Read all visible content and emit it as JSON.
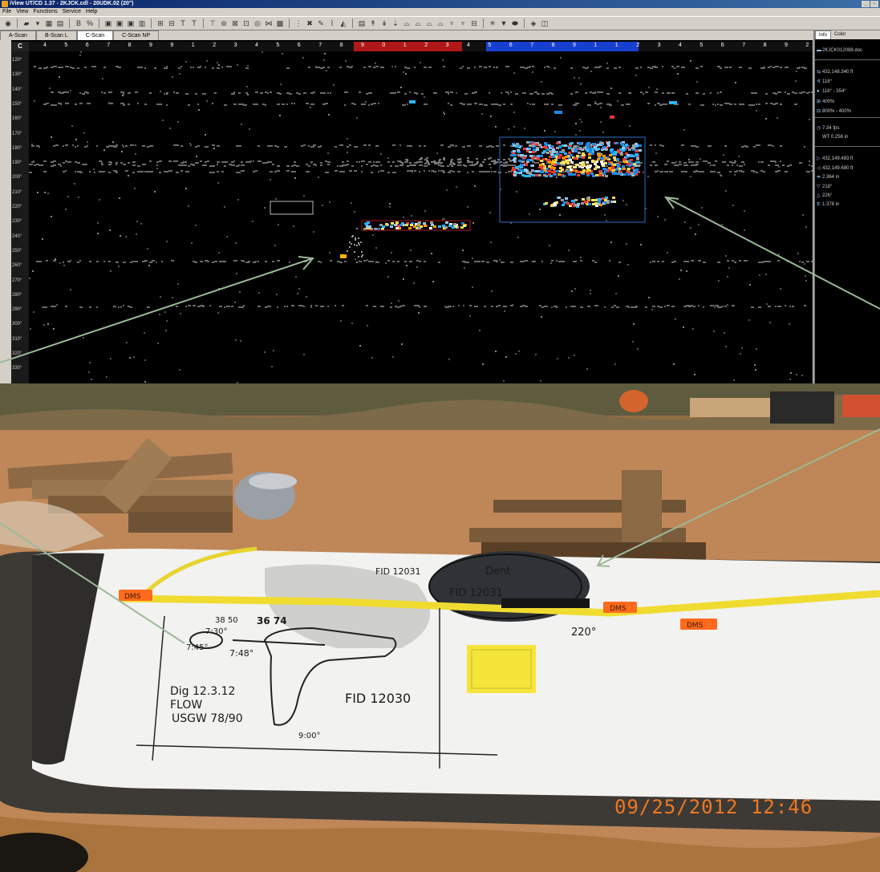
{
  "window": {
    "title": "iView UT/CD 1.37 - 2KJCK.cdl - 20UDK.02 (20\")",
    "menu": [
      "File",
      "View",
      "Functions",
      "Service",
      "Help"
    ]
  },
  "tabs": [
    "A-Scan",
    "B-Scan L",
    "C-Scan",
    "C-Scan NP"
  ],
  "active_tab": "C-Scan",
  "cscan": {
    "corner_label": "C",
    "top_ruler": [
      "4",
      "5",
      "6",
      "7",
      "8",
      "9",
      "9",
      "1",
      "2",
      "3",
      "4",
      "5",
      "6",
      "7",
      "8",
      "9",
      "0",
      "1",
      "2",
      "3",
      "4",
      "5",
      "6",
      "7",
      "8",
      "9",
      "1",
      "1",
      "2",
      "3",
      "4",
      "5",
      "6",
      "7",
      "8",
      "9",
      "2"
    ],
    "left_ruler": [
      "120°",
      "130°",
      "140°",
      "150°",
      "160°",
      "170°",
      "180°",
      "190°",
      "200°",
      "210°",
      "220°",
      "230°",
      "240°",
      "250°",
      "260°",
      "270°",
      "280°",
      "290°",
      "300°",
      "310°",
      "320°",
      "330°"
    ]
  },
  "sidebar": {
    "tabs": [
      "Info",
      "Color"
    ],
    "file": "2KJCK012088.doc",
    "rows1": [
      {
        "icon": "distance-icon",
        "text": "432,148.340 ft"
      },
      {
        "icon": "angle-icon",
        "text": "118°"
      },
      {
        "icon": "range-icon",
        "text": "118° - 354°"
      },
      {
        "icon": "zoom-icon",
        "text": "400%"
      },
      {
        "icon": "zoom-range-icon",
        "text": "800% - 400%"
      }
    ],
    "rows2": [
      {
        "icon": "speed-icon",
        "text": "7.34 fps"
      },
      {
        "icon": "wt-icon",
        "text": "WT 0.256 in"
      }
    ],
    "rows3": [
      {
        "icon": "start-icon",
        "text": "432,149.483 ft"
      },
      {
        "icon": "end-icon",
        "text": "432,149.680 ft"
      },
      {
        "icon": "length-icon",
        "text": "2.364 in"
      },
      {
        "icon": "angle-start-icon",
        "text": "218°"
      },
      {
        "icon": "angle-end-icon",
        "text": "226°"
      },
      {
        "icon": "width-icon",
        "text": "1.378 in"
      }
    ]
  },
  "photo": {
    "timestamp": "09/25/2012  12:46",
    "marker_labels": [
      "DMS",
      "DMS",
      "DMS"
    ],
    "handwriting": {
      "fid_left": "FID 12031",
      "dent": "Dent",
      "fid_center": "FID 12031",
      "deg_220": "220°",
      "dig": "Dig 12.3.12",
      "flow": "FLOW",
      "usgw": "USGW 78/90",
      "fid_right": "FID 12030",
      "deg_730": "7:30°",
      "deg_745": "7:45°",
      "deg_748": "7:48°",
      "deg_900": "9:00°",
      "num_36": "36 74",
      "num_38_50": "38 50"
    },
    "note_label": "sticky-note"
  }
}
